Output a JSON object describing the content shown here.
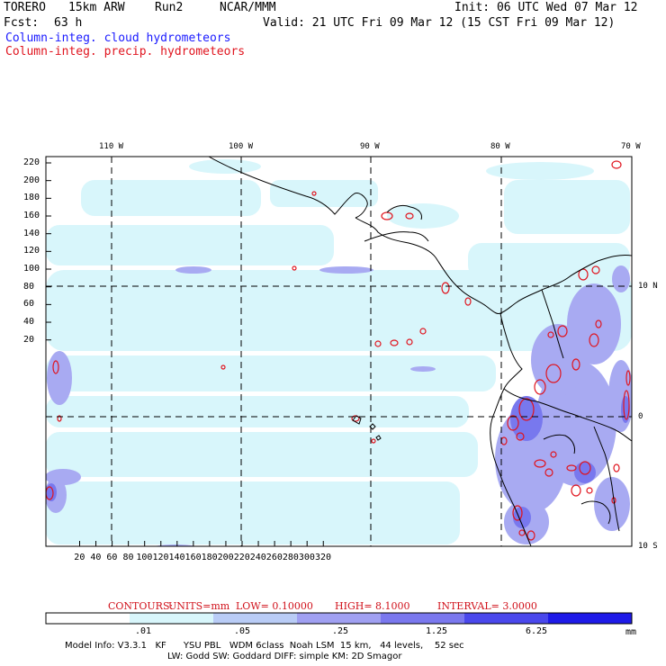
{
  "header": {
    "model": "TORERO",
    "resolution": "15km ARW",
    "run": "Run2",
    "org": "NCAR/MMM",
    "init": "Init: 06 UTC Wed 07 Mar 12",
    "fcst_label": "Fcst:",
    "fcst_value": "63 h",
    "valid": "Valid: 21 UTC Fri 09 Mar 12 (15 CST Fri 09 Mar 12)",
    "field1": "Column-integ. cloud hydrometeors",
    "field2": "Column-integ. precip. hydrometeors"
  },
  "map": {
    "lon_labels": [
      "110 W",
      "100 W",
      "90 W",
      "80 W",
      "70 W"
    ],
    "lat_labels": [
      "10 N",
      "0",
      "10 S"
    ],
    "y_ticks": [
      "220",
      "200",
      "180",
      "160",
      "140",
      "120",
      "100",
      "80",
      "60",
      "40",
      "20"
    ],
    "x_ticks": [
      "20",
      "40",
      "60",
      "80",
      "100",
      "120",
      "140",
      "160",
      "180",
      "200",
      "220",
      "240",
      "260",
      "280",
      "300",
      "320"
    ],
    "colors": {
      "cloud_light": "#d8f6fb",
      "cloud_mid": "#a8aaf2",
      "cloud_dark": "#7878ee",
      "precip": "#e0141e",
      "coast": "#000000"
    }
  },
  "contours": {
    "prefix": "CONTOURS:",
    "units": "UNITS=mm",
    "low": "LOW= 0.10000",
    "high": "HIGH= 8.1000",
    "interval": "INTERVAL= 3.0000"
  },
  "colorbar": {
    "labels": [
      ".01",
      ".05",
      ".25",
      "1.25",
      "6.25"
    ],
    "unit": "mm",
    "colors": [
      "#ffffff",
      "#d8f6fb",
      "#b9ccf6",
      "#a0a0f2",
      "#7a78ee",
      "#4a48ec",
      "#1e1ae8"
    ]
  },
  "footer": {
    "line1": "Model Info: V3.3.1   KF      YSU PBL   WDM 6class  Noah LSM  15 km,   44 levels,    52 sec",
    "line2": "LW: Godd SW: Goddard DIFF: simple KM: 2D Smagor"
  }
}
